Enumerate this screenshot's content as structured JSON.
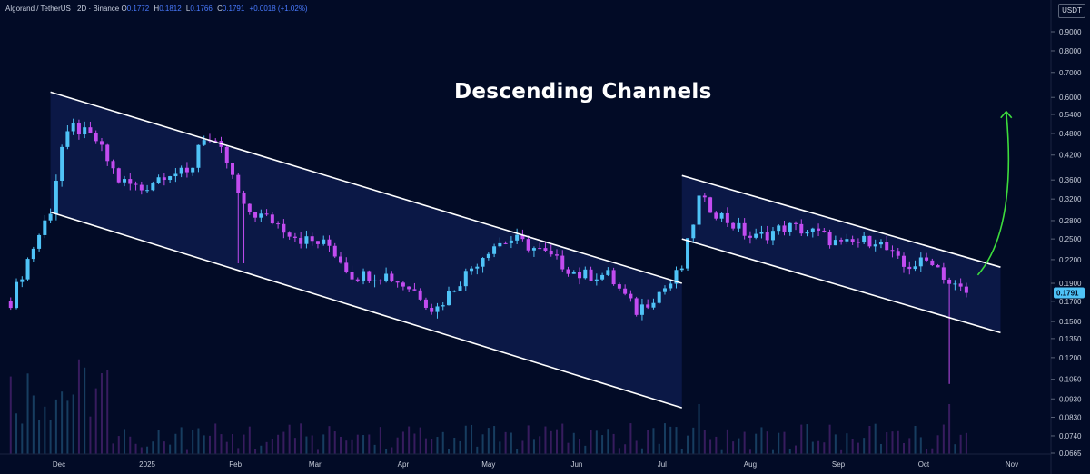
{
  "header": {
    "symbol": "Algorand / TetherUS · 2D · Binance",
    "o_label": "O",
    "o_value": "0.1772",
    "h_label": "H",
    "h_value": "0.1812",
    "l_label": "L",
    "l_value": "0.1766",
    "c_label": "C",
    "c_value": "0.1791",
    "change": "+0.0018 (+1.02%)"
  },
  "currency_label": "USDT",
  "annotation_title": "Descending Channels",
  "colors": {
    "background": "#020b26",
    "up_candle": "#4fc3f7",
    "down_candle": "#c24cf0",
    "channel_fill": "#0c1a4a",
    "channel_line": "#ffffff",
    "arrow": "#3ddc3d",
    "price_badge": "#4fc3f7"
  },
  "chart_data": {
    "type": "candlestick",
    "y_scale": "log",
    "y_ticks": [
      "0.9000",
      "0.8000",
      "0.7000",
      "0.6000",
      "0.5400",
      "0.4800",
      "0.4200",
      "0.3600",
      "0.3200",
      "0.2800",
      "0.2500",
      "0.2200",
      "0.1900",
      "0.1700",
      "0.1500",
      "0.1350",
      "0.1200",
      "0.1050",
      "0.0930",
      "0.0830",
      "0.0740",
      "0.0665"
    ],
    "x_ticks": [
      "Dec",
      "2025",
      "Feb",
      "Mar",
      "Apr",
      "May",
      "Jun",
      "Jul",
      "Aug",
      "Sep",
      "Oct",
      "Nov"
    ],
    "last_price": "0.1791",
    "close_path": [
      [
        "2024-11-14",
        0.17
      ],
      [
        "2024-11-20",
        0.22
      ],
      [
        "2024-11-28",
        0.3
      ],
      [
        "2024-12-02",
        0.44
      ],
      [
        "2024-12-06",
        0.5
      ],
      [
        "2024-12-14",
        0.46
      ],
      [
        "2024-12-22",
        0.36
      ],
      [
        "2024-12-30",
        0.34
      ],
      [
        "2025-01-08",
        0.38
      ],
      [
        "2025-01-16",
        0.37
      ],
      [
        "2025-01-20",
        0.48
      ],
      [
        "2025-01-28",
        0.42
      ],
      [
        "2025-02-04",
        0.3
      ],
      [
        "2025-02-14",
        0.28
      ],
      [
        "2025-02-24",
        0.25
      ],
      [
        "2025-03-06",
        0.24
      ],
      [
        "2025-03-14",
        0.2
      ],
      [
        "2025-03-26",
        0.2
      ],
      [
        "2025-04-06",
        0.18
      ],
      [
        "2025-04-12",
        0.16
      ],
      [
        "2025-04-20",
        0.19
      ],
      [
        "2025-05-02",
        0.24
      ],
      [
        "2025-05-10",
        0.25
      ],
      [
        "2025-05-20",
        0.23
      ],
      [
        "2025-06-02",
        0.2
      ],
      [
        "2025-06-12",
        0.2
      ],
      [
        "2025-06-22",
        0.16
      ],
      [
        "2025-06-30",
        0.18
      ],
      [
        "2025-07-04",
        0.19
      ],
      [
        "2025-07-08",
        0.21
      ],
      [
        "2025-07-14",
        0.32
      ],
      [
        "2025-07-24",
        0.28
      ],
      [
        "2025-08-02",
        0.25
      ],
      [
        "2025-08-14",
        0.27
      ],
      [
        "2025-08-24",
        0.26
      ],
      [
        "2025-09-02",
        0.24
      ],
      [
        "2025-09-14",
        0.25
      ],
      [
        "2025-09-24",
        0.21
      ],
      [
        "2025-10-04",
        0.22
      ],
      [
        "2025-10-10",
        0.19
      ],
      [
        "2025-10-16",
        0.179
      ]
    ],
    "channels": [
      {
        "upper": [
          [
            "2024-11-28",
            0.62
          ],
          [
            "2025-07-08",
            0.19
          ]
        ],
        "lower": [
          [
            "2024-11-28",
            0.295
          ],
          [
            "2025-07-08",
            0.088
          ]
        ]
      },
      {
        "upper": [
          [
            "2025-07-08",
            0.37
          ],
          [
            "2025-10-28",
            0.21
          ]
        ],
        "lower": [
          [
            "2025-07-08",
            0.25
          ],
          [
            "2025-10-28",
            0.14
          ]
        ]
      }
    ],
    "arrow": {
      "from": [
        "2025-10-20",
        0.2
      ],
      "to": [
        "2025-10-30",
        0.55
      ]
    }
  }
}
